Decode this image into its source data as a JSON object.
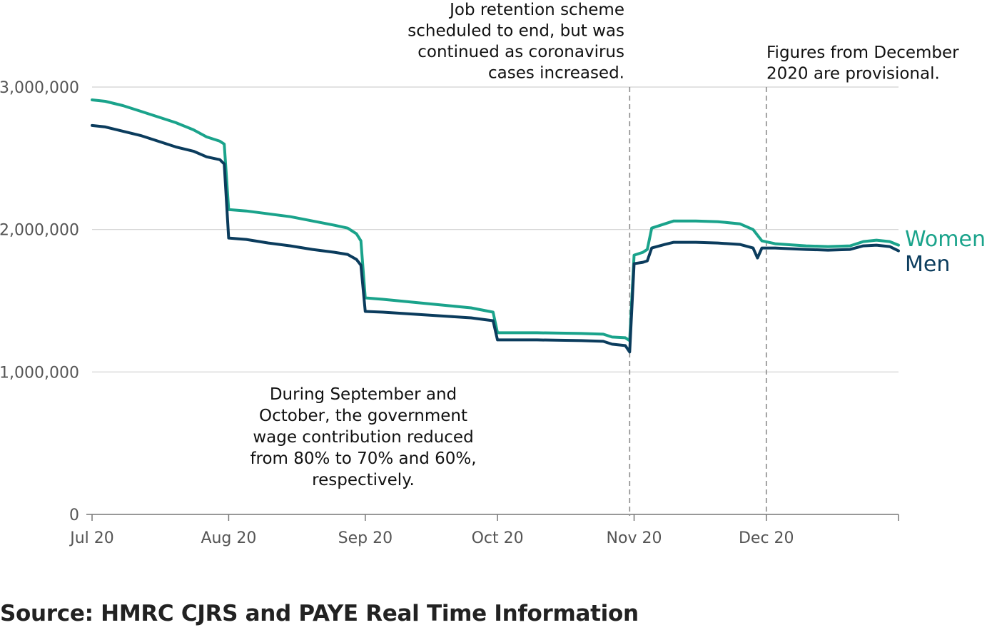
{
  "chart_data": {
    "type": "line",
    "title": "",
    "xlabel": "",
    "ylabel": "",
    "x_ticks": [
      "Jul 20",
      "Aug 20",
      "Sep 20",
      "Oct 20",
      "Nov 20",
      "Dec 20"
    ],
    "y_ticks": [
      "0",
      "1,000,000",
      "2,000,000",
      "3,000,000"
    ],
    "y_tick_values": [
      0,
      1000000,
      2000000,
      3000000
    ],
    "ylim": [
      0,
      3000000
    ],
    "xlim": [
      "2020-07-01",
      "2020-12-31"
    ],
    "grid": true,
    "series": [
      {
        "name": "Women",
        "color": "#1aa38b",
        "points": [
          [
            "2020-07-01",
            2910000
          ],
          [
            "2020-07-04",
            2900000
          ],
          [
            "2020-07-08",
            2870000
          ],
          [
            "2020-07-12",
            2830000
          ],
          [
            "2020-07-16",
            2790000
          ],
          [
            "2020-07-20",
            2750000
          ],
          [
            "2020-07-24",
            2700000
          ],
          [
            "2020-07-27",
            2650000
          ],
          [
            "2020-07-30",
            2620000
          ],
          [
            "2020-07-31",
            2600000
          ],
          [
            "2020-08-01",
            2140000
          ],
          [
            "2020-08-05",
            2130000
          ],
          [
            "2020-08-10",
            2110000
          ],
          [
            "2020-08-15",
            2090000
          ],
          [
            "2020-08-20",
            2060000
          ],
          [
            "2020-08-25",
            2030000
          ],
          [
            "2020-08-28",
            2010000
          ],
          [
            "2020-08-30",
            1970000
          ],
          [
            "2020-08-31",
            1920000
          ],
          [
            "2020-09-01",
            1520000
          ],
          [
            "2020-09-05",
            1510000
          ],
          [
            "2020-09-10",
            1495000
          ],
          [
            "2020-09-15",
            1480000
          ],
          [
            "2020-09-20",
            1465000
          ],
          [
            "2020-09-25",
            1450000
          ],
          [
            "2020-09-30",
            1420000
          ],
          [
            "2020-10-01",
            1275000
          ],
          [
            "2020-10-10",
            1275000
          ],
          [
            "2020-10-20",
            1270000
          ],
          [
            "2020-10-25",
            1265000
          ],
          [
            "2020-10-27",
            1245000
          ],
          [
            "2020-10-30",
            1240000
          ],
          [
            "2020-10-31",
            1220000
          ],
          [
            "2020-11-01",
            1820000
          ],
          [
            "2020-11-03",
            1840000
          ],
          [
            "2020-11-04",
            1860000
          ],
          [
            "2020-11-05",
            2010000
          ],
          [
            "2020-11-08",
            2040000
          ],
          [
            "2020-11-10",
            2060000
          ],
          [
            "2020-11-15",
            2060000
          ],
          [
            "2020-11-20",
            2055000
          ],
          [
            "2020-11-25",
            2040000
          ],
          [
            "2020-11-28",
            2000000
          ],
          [
            "2020-11-30",
            1920000
          ],
          [
            "2020-12-03",
            1900000
          ],
          [
            "2020-12-10",
            1885000
          ],
          [
            "2020-12-15",
            1880000
          ],
          [
            "2020-12-20",
            1885000
          ],
          [
            "2020-12-23",
            1915000
          ],
          [
            "2020-12-26",
            1925000
          ],
          [
            "2020-12-29",
            1915000
          ],
          [
            "2020-12-31",
            1890000
          ]
        ]
      },
      {
        "name": "Men",
        "color": "#0b3c5d",
        "points": [
          [
            "2020-07-01",
            2730000
          ],
          [
            "2020-07-04",
            2720000
          ],
          [
            "2020-07-08",
            2690000
          ],
          [
            "2020-07-12",
            2660000
          ],
          [
            "2020-07-16",
            2620000
          ],
          [
            "2020-07-20",
            2580000
          ],
          [
            "2020-07-24",
            2550000
          ],
          [
            "2020-07-27",
            2510000
          ],
          [
            "2020-07-30",
            2490000
          ],
          [
            "2020-07-31",
            2460000
          ],
          [
            "2020-08-01",
            1940000
          ],
          [
            "2020-08-05",
            1930000
          ],
          [
            "2020-08-10",
            1905000
          ],
          [
            "2020-08-15",
            1885000
          ],
          [
            "2020-08-20",
            1860000
          ],
          [
            "2020-08-25",
            1840000
          ],
          [
            "2020-08-28",
            1825000
          ],
          [
            "2020-08-30",
            1790000
          ],
          [
            "2020-08-31",
            1750000
          ],
          [
            "2020-09-01",
            1425000
          ],
          [
            "2020-09-05",
            1420000
          ],
          [
            "2020-09-10",
            1410000
          ],
          [
            "2020-09-15",
            1400000
          ],
          [
            "2020-09-20",
            1390000
          ],
          [
            "2020-09-25",
            1380000
          ],
          [
            "2020-09-30",
            1360000
          ],
          [
            "2020-10-01",
            1225000
          ],
          [
            "2020-10-10",
            1225000
          ],
          [
            "2020-10-20",
            1220000
          ],
          [
            "2020-10-25",
            1215000
          ],
          [
            "2020-10-27",
            1195000
          ],
          [
            "2020-10-30",
            1185000
          ],
          [
            "2020-10-31",
            1140000
          ],
          [
            "2020-11-01",
            1760000
          ],
          [
            "2020-11-03",
            1770000
          ],
          [
            "2020-11-04",
            1780000
          ],
          [
            "2020-11-05",
            1870000
          ],
          [
            "2020-11-08",
            1895000
          ],
          [
            "2020-11-10",
            1910000
          ],
          [
            "2020-11-15",
            1910000
          ],
          [
            "2020-11-20",
            1905000
          ],
          [
            "2020-11-25",
            1895000
          ],
          [
            "2020-11-28",
            1870000
          ],
          [
            "2020-11-29",
            1800000
          ],
          [
            "2020-11-30",
            1870000
          ],
          [
            "2020-12-03",
            1870000
          ],
          [
            "2020-12-10",
            1860000
          ],
          [
            "2020-12-15",
            1855000
          ],
          [
            "2020-12-20",
            1860000
          ],
          [
            "2020-12-23",
            1885000
          ],
          [
            "2020-12-26",
            1890000
          ],
          [
            "2020-12-29",
            1880000
          ],
          [
            "2020-12-31",
            1850000
          ]
        ]
      }
    ],
    "reference_lines": [
      {
        "date": "2020-10-31"
      },
      {
        "date": "2020-12-01"
      }
    ],
    "annotations": [
      {
        "lines": [
          "Job retention scheme",
          "scheduled to end, but was",
          "continued as coronavirus",
          "cases increased."
        ]
      },
      {
        "lines": [
          "Figures from December",
          "2020 are provisional."
        ]
      },
      {
        "lines": [
          "During September and",
          "October, the government",
          "wage contribution reduced",
          "from 80% to 70% and 60%,",
          "respectively."
        ]
      }
    ],
    "legend_placement": "right-end-labels"
  },
  "source": "Source: HMRC CJRS and PAYE Real Time Information"
}
